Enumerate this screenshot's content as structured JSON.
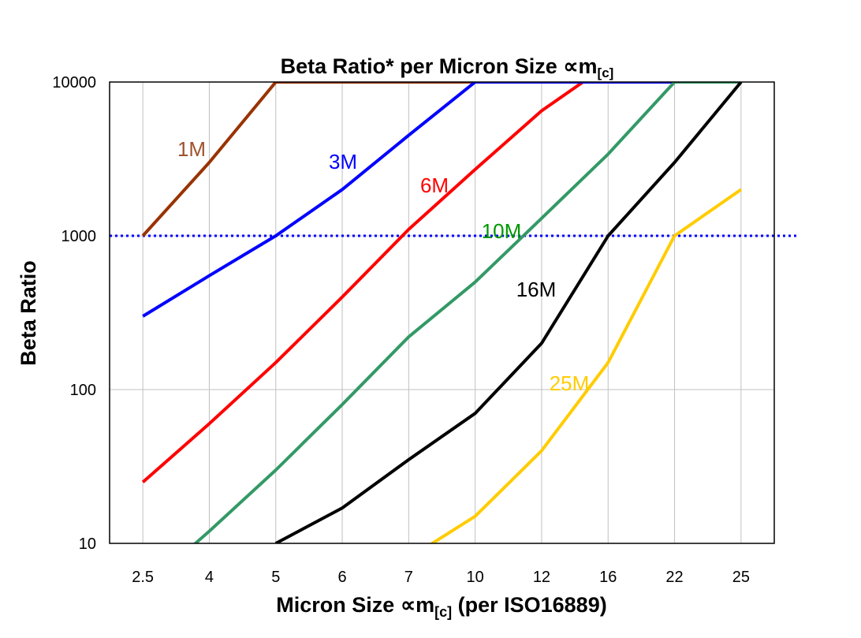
{
  "chart_data": {
    "type": "line",
    "title": "Beta Ratio* per Micron Size ",
    "title_symbol": "∝m",
    "title_subscript": "[c]",
    "xlabel": "Micron Size ",
    "xlabel_symbol": "∝m",
    "xlabel_subscript": "[c]",
    "xlabel_suffix": " (per ISO16889)",
    "ylabel": "Beta Ratio",
    "y_scale": "log",
    "ylim": [
      10,
      10000
    ],
    "y_ticks": [
      "10000",
      "1000",
      "100",
      "10"
    ],
    "categories": [
      "2.5",
      "4",
      "5",
      "6",
      "7",
      "10",
      "12",
      "16",
      "22",
      "25"
    ],
    "grid": true,
    "reference_line": {
      "y": 1000,
      "style": "dotted",
      "color": "#0000FF"
    },
    "series": [
      {
        "name": "1M",
        "color": "#993300",
        "label_color": "#A0522D",
        "values": [
          1000,
          3000,
          10000,
          10000,
          10000,
          10000,
          10000,
          10000,
          10000,
          10000
        ]
      },
      {
        "name": "6M",
        "color": "#FF0000",
        "label_color": "#FF0000",
        "values": [
          25,
          60,
          150,
          400,
          1100,
          2700,
          6500,
          13000,
          null,
          null
        ]
      },
      {
        "name": "3M",
        "color": "#0000FF",
        "label_color": "#0000FF",
        "values": [
          300,
          550,
          1000,
          2000,
          4500,
          10000,
          10000,
          10000,
          10000,
          10000
        ]
      },
      {
        "name": "10M",
        "color": "#339966",
        "label_color": "#009900",
        "values": [
          5,
          12,
          30,
          80,
          220,
          500,
          1300,
          3400,
          10000,
          10000
        ]
      },
      {
        "name": "16M",
        "color": "#000000",
        "label_color": "#000000",
        "values": [
          null,
          null,
          10,
          17,
          35,
          70,
          200,
          1000,
          3000,
          10000
        ]
      },
      {
        "name": "25M",
        "color": "#FFCC00",
        "label_color": "#FFCC00",
        "values": [
          null,
          null,
          null,
          null,
          8,
          15,
          40,
          150,
          1000,
          2000
        ]
      }
    ]
  }
}
